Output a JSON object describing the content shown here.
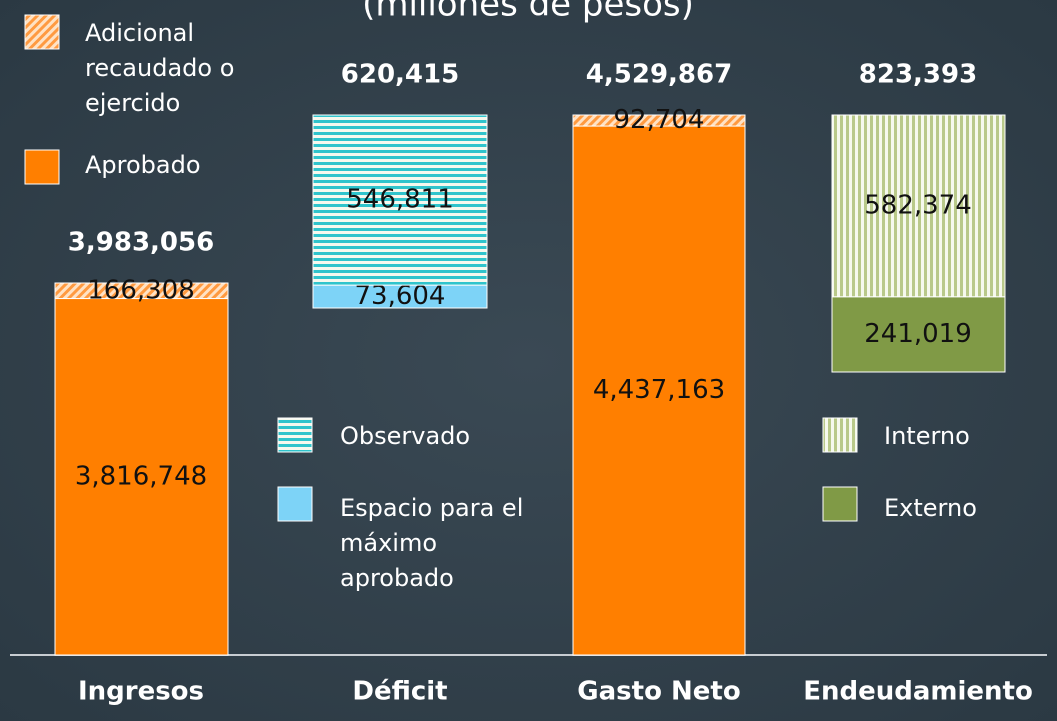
{
  "chart_data": {
    "type": "bar",
    "subtitle": "(millones de pesos)",
    "categories": [
      "Ingresos",
      "Déficit",
      "Gasto Neto",
      "Endeudamiento"
    ],
    "totals": [
      3983056,
      620415,
      4529867,
      823393
    ],
    "total_labels": [
      "3,983,056",
      "620,415",
      "4,529,867",
      "823,393"
    ],
    "series": [
      {
        "name": "Aprobado",
        "color": "#ff7f00",
        "pattern": "solid",
        "values": [
          3816748,
          null,
          4437163,
          null
        ],
        "value_labels": [
          "3,816,748",
          null,
          "4,437,163",
          null
        ]
      },
      {
        "name": "Adicional recaudado o ejercido",
        "color": "#ff9a40",
        "pattern": "diagonal",
        "values": [
          166308,
          null,
          92704,
          null
        ],
        "value_labels": [
          "166,308",
          null,
          "92,704",
          null
        ]
      },
      {
        "name": "Espacio para el máximo aprobado",
        "color": "#7dd3f7",
        "pattern": "solid",
        "values": [
          null,
          73604,
          null,
          null
        ],
        "value_labels": [
          null,
          "73,604",
          null,
          null
        ]
      },
      {
        "name": "Observado",
        "color": "#30c4cc",
        "pattern": "horizontal",
        "values": [
          null,
          546811,
          null,
          null
        ],
        "value_labels": [
          null,
          "546,811",
          null,
          null
        ]
      },
      {
        "name": "Externo",
        "color": "#809a46",
        "pattern": "solid",
        "values": [
          null,
          null,
          null,
          241019
        ],
        "value_labels": [
          null,
          null,
          null,
          "241,019"
        ]
      },
      {
        "name": "Interno",
        "color": "#b9c98a",
        "pattern": "vertical",
        "values": [
          null,
          null,
          null,
          582374
        ],
        "value_labels": [
          null,
          null,
          null,
          "582,374"
        ]
      }
    ]
  }
}
